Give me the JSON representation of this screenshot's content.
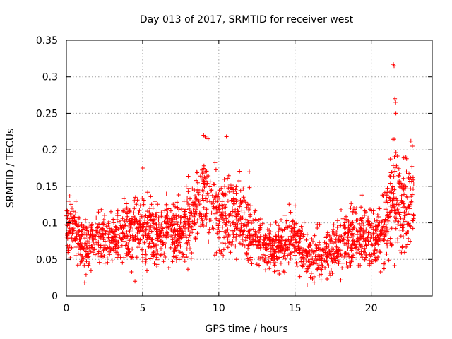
{
  "chart_data": {
    "type": "scatter",
    "title": "Day 013 of 2017, SRMTID for receiver west",
    "xlabel": "GPS time / hours",
    "ylabel": "SRMTID / TECUs",
    "xlim": [
      0,
      24
    ],
    "ylim": [
      0,
      0.35
    ],
    "xticks": [
      0,
      5,
      10,
      15,
      20
    ],
    "xtick_labels": [
      "0",
      "5",
      "10",
      "15",
      "20"
    ],
    "yticks": [
      0,
      0.05,
      0.1,
      0.15,
      0.2,
      0.25,
      0.3,
      0.35
    ],
    "ytick_labels": [
      "0",
      "0.05",
      "0.1",
      "0.15",
      "0.2",
      "0.25",
      "0.3",
      "0.35"
    ],
    "grid": true,
    "marker": "+",
    "color": "#ff0000",
    "series": [
      {
        "name": "SRMTID",
        "description": "Approximate local mean level and spread of the scattered points per time interval",
        "x": [
          0.0,
          0.5,
          1.0,
          1.5,
          2.0,
          2.5,
          3.0,
          3.5,
          4.0,
          4.5,
          5.0,
          5.5,
          6.0,
          6.5,
          7.0,
          7.5,
          8.0,
          8.5,
          9.0,
          9.5,
          10.0,
          10.5,
          11.0,
          11.5,
          12.0,
          12.5,
          13.0,
          13.5,
          14.0,
          14.5,
          15.0,
          15.5,
          16.0,
          16.5,
          17.0,
          17.5,
          18.0,
          18.5,
          19.0,
          19.5,
          20.0,
          20.5,
          21.0,
          21.5,
          22.0,
          22.5,
          22.8
        ],
        "y": [
          0.1,
          0.09,
          0.07,
          0.07,
          0.08,
          0.08,
          0.075,
          0.08,
          0.085,
          0.09,
          0.09,
          0.09,
          0.085,
          0.085,
          0.09,
          0.09,
          0.1,
          0.12,
          0.15,
          0.12,
          0.11,
          0.1,
          0.11,
          0.1,
          0.09,
          0.08,
          0.07,
          0.065,
          0.07,
          0.075,
          0.08,
          0.06,
          0.05,
          0.055,
          0.06,
          0.065,
          0.075,
          0.08,
          0.09,
          0.085,
          0.08,
          0.085,
          0.1,
          0.15,
          0.12,
          0.11,
          0.14
        ],
        "spread": [
          0.03,
          0.03,
          0.03,
          0.03,
          0.03,
          0.03,
          0.03,
          0.03,
          0.035,
          0.035,
          0.035,
          0.035,
          0.03,
          0.03,
          0.035,
          0.035,
          0.04,
          0.045,
          0.05,
          0.045,
          0.045,
          0.045,
          0.04,
          0.04,
          0.04,
          0.03,
          0.025,
          0.025,
          0.03,
          0.03,
          0.03,
          0.025,
          0.025,
          0.025,
          0.025,
          0.025,
          0.03,
          0.035,
          0.035,
          0.035,
          0.035,
          0.035,
          0.045,
          0.07,
          0.06,
          0.05,
          0.05
        ],
        "notable_points": [
          {
            "x": 21.45,
            "y": 0.317
          },
          {
            "x": 21.5,
            "y": 0.315
          },
          {
            "x": 21.55,
            "y": 0.27
          },
          {
            "x": 21.6,
            "y": 0.265
          },
          {
            "x": 21.62,
            "y": 0.25
          },
          {
            "x": 9.0,
            "y": 0.22
          },
          {
            "x": 9.3,
            "y": 0.215
          },
          {
            "x": 10.5,
            "y": 0.218
          },
          {
            "x": 22.6,
            "y": 0.212
          },
          {
            "x": 22.7,
            "y": 0.205
          },
          {
            "x": 5.0,
            "y": 0.175
          },
          {
            "x": 12.0,
            "y": 0.17
          },
          {
            "x": 1.2,
            "y": 0.018
          },
          {
            "x": 4.5,
            "y": 0.02
          },
          {
            "x": 15.8,
            "y": 0.015
          },
          {
            "x": 18.0,
            "y": 0.022
          }
        ]
      }
    ]
  }
}
